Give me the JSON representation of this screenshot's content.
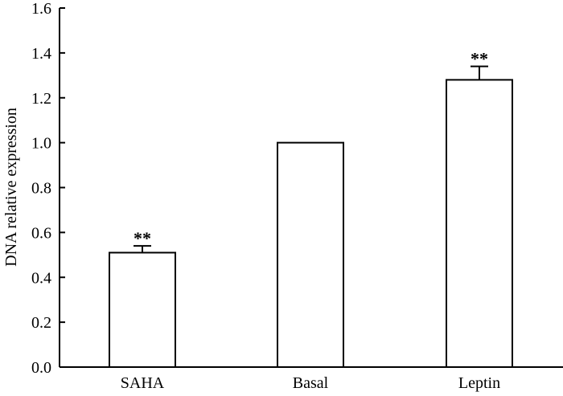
{
  "chart_data": {
    "type": "bar",
    "title": "",
    "xlabel": "",
    "ylabel": "DNA relative expression",
    "ylim": [
      0.0,
      1.6
    ],
    "yticks": [
      "0.0",
      "0.2",
      "0.4",
      "0.6",
      "0.8",
      "1.0",
      "1.2",
      "1.4",
      "1.6"
    ],
    "categories": [
      "SAHA",
      "Basal",
      "Leptin"
    ],
    "values": [
      0.51,
      1.0,
      1.28
    ],
    "error": [
      0.03,
      null,
      0.06
    ],
    "annotations": [
      "**",
      "",
      "**"
    ],
    "grid": false,
    "legend": "none",
    "colors": {
      "bar_fill": "#ffffff",
      "bar_stroke": "#000000",
      "axis": "#000000"
    }
  }
}
